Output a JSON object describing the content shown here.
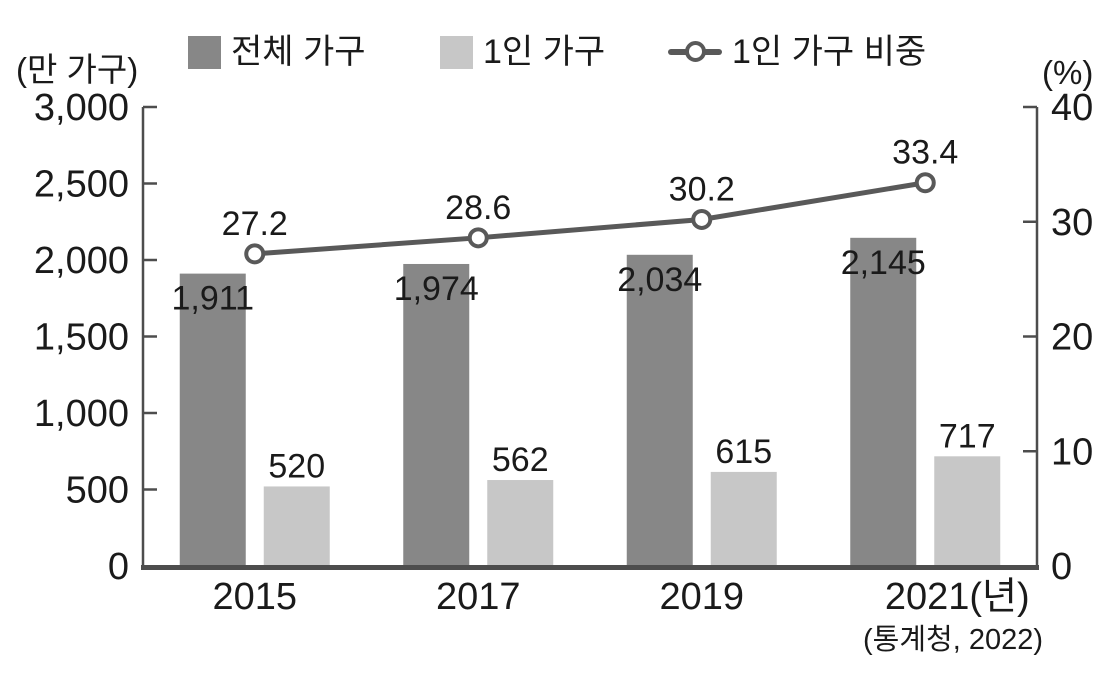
{
  "chart_data": {
    "type": "bar",
    "subtype": "grouped-bar-with-line",
    "categories": [
      "2015",
      "2017",
      "2019",
      "2021"
    ],
    "x_tick_labels": [
      "2015",
      "2017",
      "2019",
      "2021(년)"
    ],
    "series": [
      {
        "name": "전체 가구",
        "type": "bar",
        "color": "#878787",
        "axis": "left",
        "values": [
          1911,
          1974,
          2034,
          2145
        ],
        "labels": [
          "1,911",
          "1,974",
          "2,034",
          "2,145"
        ]
      },
      {
        "name": "1인 가구",
        "type": "bar",
        "color": "#c7c7c7",
        "axis": "left",
        "values": [
          520,
          562,
          615,
          717
        ],
        "labels": [
          "520",
          "562",
          "615",
          "717"
        ]
      },
      {
        "name": "1인 가구 비중",
        "type": "line",
        "color": "#595959",
        "axis": "right",
        "values": [
          27.2,
          28.6,
          30.2,
          33.4
        ],
        "labels": [
          "27.2",
          "28.6",
          "30.2",
          "33.4"
        ]
      }
    ],
    "left_axis": {
      "unit": "(만 가구)",
      "min": 0,
      "max": 3000,
      "step": 500,
      "tick_labels": [
        "0",
        "500",
        "1,000",
        "1,500",
        "2,000",
        "2,500",
        "3,000"
      ]
    },
    "right_axis": {
      "unit": "(%)",
      "min": 0,
      "max": 40,
      "step": 10,
      "tick_labels": [
        "0",
        "10",
        "20",
        "30",
        "40"
      ]
    },
    "legend_position": "top",
    "grid": false,
    "axis_color": "#4d4d4d",
    "source": "(통계청, 2022)"
  }
}
